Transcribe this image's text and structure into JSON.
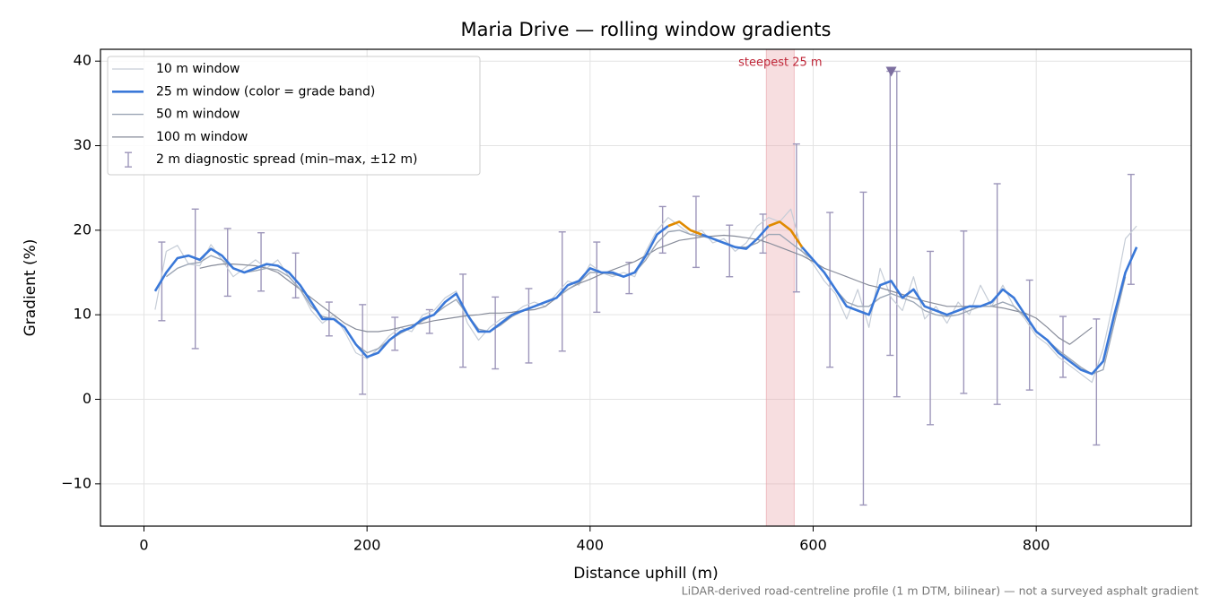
{
  "chart_data": {
    "type": "line",
    "title": "Maria Drive — rolling window gradients",
    "x_label": "Distance uphill (m)",
    "y_label": "Gradient (%)",
    "note": "LiDAR-derived road-centreline profile (1 m DTM, bilinear) — not a surveyed asphalt gradient",
    "xlim": [
      -39,
      939
    ],
    "ylim": [
      -15,
      41.4
    ],
    "xticks": [
      0,
      200,
      400,
      600,
      800
    ],
    "yticks": [
      {
        "value": -10,
        "label": "−10"
      },
      0,
      10,
      20,
      30,
      40
    ],
    "grid": true,
    "legend": "upper left",
    "x": [
      0,
      10,
      20,
      30,
      40,
      50,
      60,
      70,
      80,
      90,
      100,
      110,
      120,
      130,
      140,
      150,
      160,
      170,
      180,
      190,
      200,
      210,
      220,
      230,
      240,
      250,
      260,
      270,
      280,
      290,
      300,
      310,
      320,
      330,
      340,
      350,
      360,
      370,
      380,
      390,
      400,
      410,
      420,
      430,
      440,
      450,
      460,
      470,
      480,
      490,
      500,
      510,
      520,
      530,
      540,
      550,
      560,
      570,
      580,
      590,
      600,
      610,
      620,
      630,
      640,
      650,
      660,
      670,
      680,
      690,
      700,
      710,
      720,
      730,
      740,
      750,
      760,
      770,
      780,
      790,
      800,
      810,
      820,
      830,
      840,
      850,
      860,
      870,
      880,
      890,
      900
    ],
    "series": [
      {
        "name": "10 m window",
        "color": "#c6cdd7",
        "width": 1.2,
        "values": [
          null,
          10.6,
          17.5,
          18.2,
          16.0,
          15.8,
          18.3,
          16.5,
          14.5,
          15.5,
          16.5,
          15.5,
          16.5,
          14.5,
          13.0,
          10.5,
          9.0,
          10.0,
          8.0,
          5.5,
          4.8,
          6.0,
          7.5,
          8.5,
          8.0,
          10.0,
          10.5,
          12.0,
          12.8,
          9.0,
          7.0,
          8.5,
          9.5,
          10.0,
          11.0,
          11.5,
          11.0,
          12.5,
          14.0,
          13.5,
          16.0,
          15.0,
          14.5,
          15.0,
          14.5,
          17.5,
          20.0,
          21.5,
          20.5,
          19.5,
          20.0,
          18.5,
          19.0,
          17.5,
          18.5,
          20.5,
          21.5,
          21.0,
          22.5,
          17.5,
          16.0,
          14.0,
          12.5,
          9.5,
          13.0,
          8.5,
          15.5,
          12.0,
          10.5,
          14.5,
          9.5,
          11.0,
          9.0,
          11.5,
          10.0,
          13.5,
          11.0,
          13.5,
          11.0,
          9.5,
          7.5,
          6.5,
          5.0,
          4.0,
          3.0,
          2.0,
          6.0,
          12.0,
          19.0,
          20.5,
          null
        ]
      },
      {
        "name": "25 m window (color = grade band)",
        "color": "#3a78d8",
        "width": 2.6,
        "band_breaks": [
          20
        ],
        "band_colors": [
          "#3a78d8",
          "#e08a00"
        ],
        "values": [
          null,
          12.8,
          15.0,
          16.7,
          17.0,
          16.5,
          17.8,
          17.0,
          15.5,
          15.0,
          15.5,
          16.0,
          15.8,
          15.0,
          13.5,
          11.5,
          9.5,
          9.5,
          8.5,
          6.5,
          5.0,
          5.5,
          7.0,
          8.0,
          8.5,
          9.5,
          10.0,
          11.5,
          12.5,
          10.0,
          8.0,
          8.0,
          9.0,
          10.0,
          10.5,
          11.0,
          11.5,
          12.0,
          13.5,
          14.0,
          15.5,
          15.0,
          15.0,
          14.5,
          15.0,
          17.0,
          19.5,
          20.5,
          21.0,
          20.0,
          19.5,
          19.0,
          18.5,
          18.0,
          17.8,
          19.0,
          20.5,
          21.0,
          20.0,
          18.0,
          16.5,
          15.0,
          13.0,
          11.0,
          10.5,
          10.0,
          13.5,
          14.0,
          12.0,
          13.0,
          11.0,
          10.5,
          10.0,
          10.5,
          11.0,
          11.0,
          11.5,
          13.0,
          12.0,
          10.0,
          8.0,
          7.0,
          5.5,
          4.5,
          3.5,
          3.0,
          4.5,
          10.0,
          15.0,
          18.0,
          null
        ]
      },
      {
        "name": "50 m window",
        "color": "#9ca6b5",
        "width": 1.4,
        "values": [
          null,
          null,
          14.5,
          15.5,
          16.0,
          16.2,
          17.0,
          16.5,
          15.5,
          15.0,
          15.2,
          15.5,
          15.3,
          14.5,
          13.0,
          11.0,
          9.8,
          9.5,
          8.5,
          6.5,
          5.5,
          6.0,
          7.0,
          7.8,
          8.5,
          9.3,
          10.0,
          11.0,
          11.8,
          10.0,
          8.3,
          8.0,
          8.8,
          9.8,
          10.5,
          11.0,
          11.5,
          12.0,
          13.0,
          13.8,
          15.0,
          15.0,
          14.8,
          14.5,
          15.0,
          16.5,
          18.5,
          19.8,
          20.0,
          19.5,
          19.3,
          19.0,
          18.5,
          18.0,
          18.0,
          18.5,
          19.5,
          19.5,
          18.5,
          17.5,
          16.5,
          15.0,
          13.0,
          11.5,
          11.0,
          11.0,
          12.0,
          12.5,
          12.0,
          11.5,
          10.5,
          10.0,
          9.8,
          10.0,
          10.5,
          11.0,
          11.0,
          11.5,
          11.0,
          9.8,
          8.0,
          7.0,
          5.8,
          4.8,
          3.8,
          3.0,
          3.5,
          9.0,
          14.5,
          null,
          null
        ]
      },
      {
        "name": "100 m window",
        "color": "#878c9a",
        "width": 1.2,
        "values": [
          null,
          null,
          null,
          null,
          null,
          15.5,
          15.8,
          16.0,
          16.0,
          15.9,
          15.8,
          15.5,
          15.0,
          14.0,
          13.0,
          12.0,
          11.0,
          10.0,
          9.0,
          8.3,
          8.0,
          8.0,
          8.2,
          8.5,
          8.8,
          9.0,
          9.3,
          9.5,
          9.7,
          9.9,
          10.0,
          10.2,
          10.2,
          10.3,
          10.5,
          10.6,
          11.0,
          12.0,
          13.0,
          13.7,
          14.2,
          14.8,
          15.3,
          15.8,
          16.3,
          17.0,
          17.8,
          18.3,
          18.8,
          19.0,
          19.2,
          19.3,
          19.4,
          19.3,
          19.1,
          18.9,
          18.5,
          18.0,
          17.5,
          17.0,
          16.3,
          15.5,
          15.0,
          14.5,
          14.0,
          13.5,
          13.2,
          12.8,
          12.4,
          12.0,
          11.6,
          11.3,
          11.0,
          11.0,
          11.0,
          11.0,
          11.0,
          10.8,
          10.5,
          10.2,
          9.6,
          8.5,
          7.3,
          6.5,
          7.5,
          8.5,
          null,
          null,
          null,
          null,
          null
        ]
      }
    ],
    "errorbars": {
      "name": "2 m diagnostic spread (min–max, ±12 m)",
      "color": "#9d96ba",
      "x": [
        16,
        46,
        75,
        105,
        136,
        166,
        196,
        225,
        256,
        286,
        315,
        345,
        375,
        406,
        435,
        465,
        495,
        525,
        555,
        585,
        615,
        645,
        669,
        675,
        705,
        735,
        765,
        794,
        824,
        854,
        885
      ],
      "min": [
        9.3,
        6.0,
        12.2,
        12.8,
        12.0,
        7.5,
        0.6,
        5.8,
        7.8,
        3.8,
        3.6,
        4.3,
        5.7,
        10.3,
        12.5,
        17.3,
        15.6,
        14.5,
        17.3,
        12.7,
        3.8,
        -12.5,
        5.2,
        0.3,
        -3.0,
        0.7,
        -0.6,
        1.1,
        2.6,
        -5.4,
        13.6
      ],
      "max": [
        18.6,
        22.5,
        20.2,
        19.7,
        17.3,
        11.5,
        11.2,
        9.7,
        10.6,
        14.8,
        12.1,
        13.1,
        19.8,
        18.6,
        16.2,
        22.8,
        24.0,
        20.6,
        21.9,
        30.2,
        22.1,
        24.5,
        38.8,
        38.8,
        17.5,
        19.9,
        25.5,
        14.1,
        9.8,
        9.5,
        26.6
      ]
    },
    "highlight": {
      "x0": 558,
      "x1": 583,
      "label": "steepest 25 m",
      "color": "#e8a0a5",
      "label_color": "#c0283a"
    },
    "peak_marker": {
      "x": 670,
      "y": 38.8,
      "color": "#7d6fa0"
    }
  }
}
